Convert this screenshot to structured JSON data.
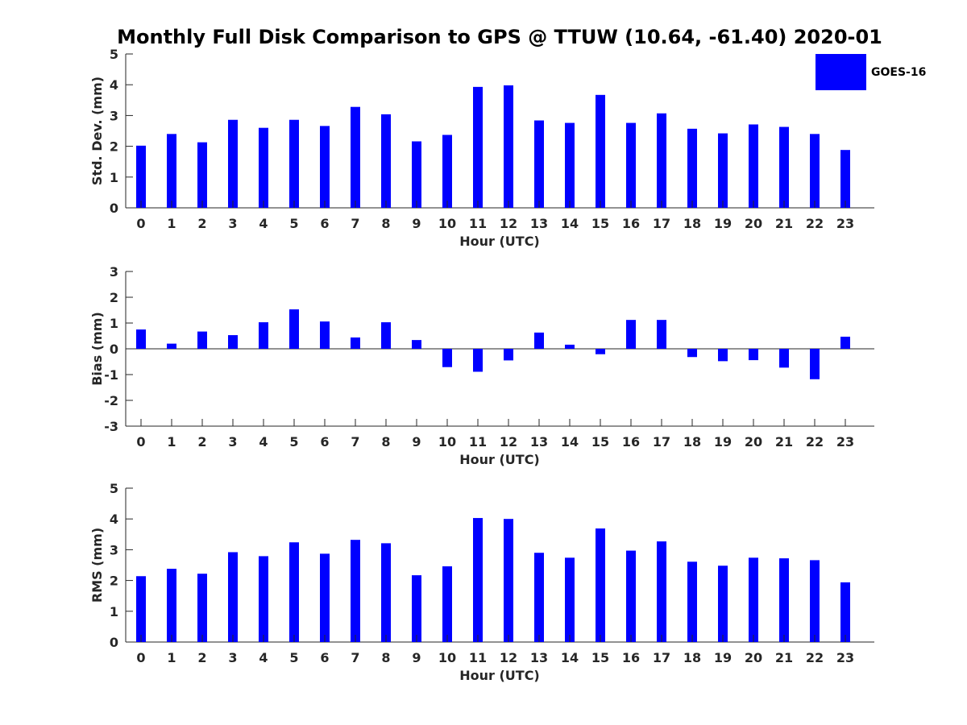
{
  "figure": {
    "title": "Monthly Full Disk Comparison to GPS @ TTUW (10.64, -61.40) 2020-01"
  },
  "legend": {
    "label": "GOES-16",
    "color": "#0000ff",
    "placement": "top-right"
  },
  "chart_data": [
    {
      "type": "bar",
      "ylabel": "Std. Dev. (mm)",
      "xlabel": "Hour (UTC)",
      "ylim": [
        0,
        5
      ],
      "yticks": [
        0,
        1,
        2,
        3,
        4,
        5
      ],
      "categories": [
        "0",
        "1",
        "2",
        "3",
        "4",
        "5",
        "6",
        "7",
        "8",
        "9",
        "10",
        "11",
        "12",
        "13",
        "14",
        "15",
        "16",
        "17",
        "18",
        "19",
        "20",
        "21",
        "22",
        "23"
      ],
      "series": [
        {
          "name": "GOES-16",
          "color": "#0000ff",
          "values": [
            2.02,
            2.4,
            2.13,
            2.86,
            2.6,
            2.86,
            2.66,
            3.28,
            3.04,
            2.16,
            2.37,
            3.93,
            3.98,
            2.84,
            2.76,
            3.67,
            2.76,
            3.07,
            2.57,
            2.42,
            2.71,
            2.63,
            2.4,
            1.88
          ]
        }
      ],
      "grid": false
    },
    {
      "type": "bar",
      "ylabel": "Bias (mm)",
      "xlabel": "Hour (UTC)",
      "ylim": [
        -3,
        3
      ],
      "yticks": [
        -3,
        -2,
        -1,
        0,
        1,
        2,
        3
      ],
      "categories": [
        "0",
        "1",
        "2",
        "3",
        "4",
        "5",
        "6",
        "7",
        "8",
        "9",
        "10",
        "11",
        "12",
        "13",
        "14",
        "15",
        "16",
        "17",
        "18",
        "19",
        "20",
        "21",
        "22",
        "23"
      ],
      "series": [
        {
          "name": "GOES-16",
          "color": "#0000ff",
          "values": [
            0.75,
            0.2,
            0.67,
            0.53,
            1.03,
            1.53,
            1.06,
            0.44,
            1.03,
            0.34,
            -0.71,
            -0.89,
            -0.45,
            0.63,
            0.16,
            -0.21,
            1.12,
            1.12,
            -0.32,
            -0.48,
            -0.44,
            -0.73,
            -1.18,
            0.47
          ]
        }
      ],
      "grid": false
    },
    {
      "type": "bar",
      "ylabel": "RMS (mm)",
      "xlabel": "Hour (UTC)",
      "ylim": [
        0,
        5
      ],
      "yticks": [
        0,
        1,
        2,
        3,
        4,
        5
      ],
      "categories": [
        "0",
        "1",
        "2",
        "3",
        "4",
        "5",
        "6",
        "7",
        "8",
        "9",
        "10",
        "11",
        "12",
        "13",
        "14",
        "15",
        "16",
        "17",
        "18",
        "19",
        "20",
        "21",
        "22",
        "23"
      ],
      "series": [
        {
          "name": "GOES-16",
          "color": "#0000ff",
          "values": [
            2.14,
            2.38,
            2.22,
            2.92,
            2.79,
            3.24,
            2.87,
            3.32,
            3.21,
            2.17,
            2.46,
            4.03,
            4.0,
            2.9,
            2.74,
            3.69,
            2.97,
            3.27,
            2.61,
            2.48,
            2.74,
            2.72,
            2.66,
            1.94
          ]
        }
      ],
      "grid": false
    }
  ]
}
